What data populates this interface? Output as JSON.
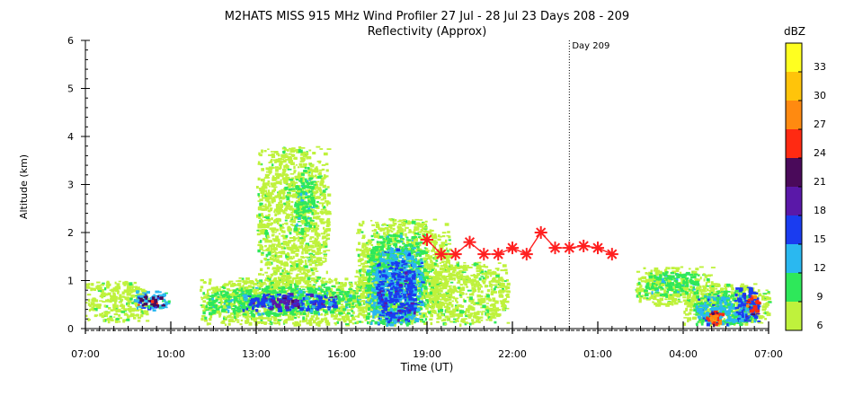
{
  "chart_data": {
    "type": "heatmap",
    "title": "M2HATS MISS 915 MHz Wind Profiler  27 Jul - 28 Jul 23 Days 208 - 209",
    "subtitle": "Reflectivity (Approx)",
    "xlabel": "Time (UT)",
    "ylabel": "Altitude (km)",
    "x_ticks": [
      "07:00",
      "10:00",
      "13:00",
      "16:00",
      "19:00",
      "22:00",
      "01:00",
      "04:00",
      "07:00"
    ],
    "xlim_hours": [
      0,
      24
    ],
    "y_ticks": [
      "0",
      "1",
      "2",
      "3",
      "4",
      "5",
      "6"
    ],
    "ylim": [
      0,
      6
    ],
    "grid": false,
    "day_marker": {
      "label": "Day 209",
      "x_hours": 17.0
    },
    "colorbar": {
      "title": "dBZ",
      "tick_labels": [
        "6",
        "9",
        "12",
        "15",
        "18",
        "21",
        "24",
        "27",
        "30",
        "33"
      ],
      "levels": [
        6,
        9,
        12,
        15,
        18,
        21,
        24,
        27,
        30,
        33,
        36
      ],
      "colors": [
        "#bff23c",
        "#2ee85a",
        "#2ab8f0",
        "#1a3cf0",
        "#5a18a8",
        "#4a0a5a",
        "#ff2a12",
        "#ff8a10",
        "#ffc40a",
        "#ffff20"
      ]
    },
    "markers": {
      "color": "#ff2020",
      "points": [
        {
          "x": 12.0,
          "y": 1.85
        },
        {
          "x": 12.5,
          "y": 1.55
        },
        {
          "x": 13.0,
          "y": 1.55
        },
        {
          "x": 13.5,
          "y": 1.8
        },
        {
          "x": 14.0,
          "y": 1.55
        },
        {
          "x": 14.5,
          "y": 1.55
        },
        {
          "x": 15.0,
          "y": 1.68
        },
        {
          "x": 15.5,
          "y": 1.55
        },
        {
          "x": 16.0,
          "y": 2.0
        },
        {
          "x": 16.5,
          "y": 1.68
        },
        {
          "x": 17.0,
          "y": 1.68
        },
        {
          "x": 17.5,
          "y": 1.72
        },
        {
          "x": 18.0,
          "y": 1.68
        },
        {
          "x": 18.5,
          "y": 1.55
        }
      ]
    },
    "echo_regions": [
      {
        "x0": 0.0,
        "x1": 2.2,
        "y0": 0.15,
        "y1": 1.0,
        "level": 0
      },
      {
        "x0": 1.7,
        "x1": 2.9,
        "y0": 0.4,
        "y1": 0.8,
        "level": 2
      },
      {
        "x0": 1.8,
        "x1": 2.7,
        "y0": 0.5,
        "y1": 0.7,
        "level": 5
      },
      {
        "x0": 4.0,
        "x1": 10.5,
        "y0": 0.1,
        "y1": 1.1,
        "level": 0
      },
      {
        "x0": 4.2,
        "x1": 9.6,
        "y0": 0.3,
        "y1": 0.9,
        "level": 1
      },
      {
        "x0": 5.5,
        "x1": 8.8,
        "y0": 0.4,
        "y1": 0.75,
        "level": 3
      },
      {
        "x0": 6.5,
        "x1": 7.5,
        "y0": 0.45,
        "y1": 0.7,
        "level": 4
      },
      {
        "x0": 6.0,
        "x1": 8.5,
        "y0": 0.9,
        "y1": 3.8,
        "level": 0
      },
      {
        "x0": 7.3,
        "x1": 8.0,
        "y0": 2.0,
        "y1": 3.2,
        "level": 1
      },
      {
        "x0": 9.5,
        "x1": 12.8,
        "y0": 0.1,
        "y1": 2.3,
        "level": 0
      },
      {
        "x0": 9.8,
        "x1": 11.9,
        "y0": 0.1,
        "y1": 2.0,
        "level": 1
      },
      {
        "x0": 10.0,
        "x1": 11.8,
        "y0": 0.1,
        "y1": 1.7,
        "level": 2
      },
      {
        "x0": 10.2,
        "x1": 11.6,
        "y0": 0.2,
        "y1": 1.4,
        "level": 3
      },
      {
        "x0": 12.0,
        "x1": 14.8,
        "y0": 0.1,
        "y1": 1.4,
        "level": 0
      },
      {
        "x0": 19.3,
        "x1": 22.0,
        "y0": 0.5,
        "y1": 1.3,
        "level": 0
      },
      {
        "x0": 19.6,
        "x1": 21.5,
        "y0": 0.7,
        "y1": 1.2,
        "level": 1
      },
      {
        "x0": 21.0,
        "x1": 24.0,
        "y0": 0.1,
        "y1": 0.95,
        "level": 0
      },
      {
        "x0": 21.3,
        "x1": 23.6,
        "y0": 0.1,
        "y1": 0.8,
        "level": 1
      },
      {
        "x0": 21.4,
        "x1": 23.5,
        "y0": 0.1,
        "y1": 0.7,
        "level": 2
      },
      {
        "x0": 22.8,
        "x1": 23.6,
        "y0": 0.15,
        "y1": 0.9,
        "level": 3
      },
      {
        "x0": 23.2,
        "x1": 23.6,
        "y0": 0.3,
        "y1": 0.7,
        "level": 6
      },
      {
        "x0": 21.8,
        "x1": 22.4,
        "y0": 0.1,
        "y1": 0.4,
        "level": 6
      },
      {
        "x0": 21.9,
        "x1": 22.2,
        "y0": 0.15,
        "y1": 0.3,
        "level": 7
      }
    ]
  }
}
